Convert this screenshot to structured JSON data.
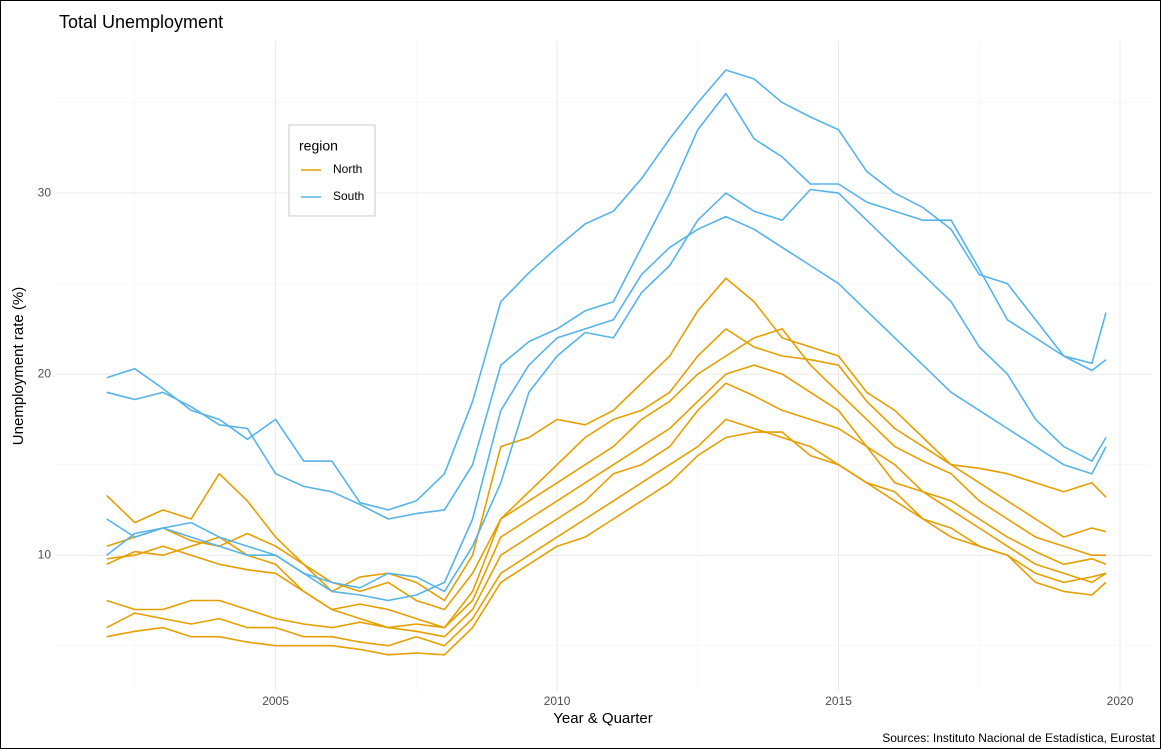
{
  "chart_data": {
    "type": "line",
    "title": "Total Unemployment",
    "x_label": "Year & Quarter",
    "y_label": "Unemployment rate (%)",
    "caption": "Sources: Instituto Nacional de Estadística, Eurostat",
    "legend_title": "region",
    "grid": true,
    "xlim": [
      2001.1,
      2020.55
    ],
    "ylim": [
      2.5,
      38.4
    ],
    "xticks": [
      2005,
      2010,
      2015,
      2020
    ],
    "yticks": [
      10,
      20,
      30
    ],
    "xminor": [
      2002.5,
      2007.5,
      2012.5,
      2017.5
    ],
    "yminor": [
      5,
      15,
      25,
      35
    ],
    "x": [
      2002,
      2002.5,
      2003,
      2003.5,
      2004,
      2004.5,
      2005,
      2005.5,
      2006,
      2006.5,
      2007,
      2007.5,
      2008,
      2008.5,
      2009,
      2009.5,
      2010,
      2010.5,
      2011,
      2011.5,
      2012,
      2012.5,
      2013,
      2013.5,
      2014,
      2014.5,
      2015,
      2015.5,
      2016,
      2016.5,
      2017,
      2017.5,
      2018,
      2018.5,
      2019,
      2019.5,
      2019.75
    ],
    "series": [
      {
        "name": "North",
        "color": "#E69F00",
        "lines": [
          [
            13.3,
            11.8,
            12.5,
            12.0,
            14.5,
            13.0,
            11.0,
            9.5,
            8.0,
            8.8,
            9.0,
            8.5,
            7.5,
            10.0,
            16.0,
            16.5,
            17.5,
            17.2,
            18.0,
            19.5,
            21.0,
            23.5,
            25.3,
            24.0,
            22.0,
            21.5,
            21.0,
            19.0,
            18.0,
            16.5,
            15.0,
            14.8,
            14.5,
            14.0,
            13.5,
            14.0,
            13.2
          ],
          [
            10.5,
            11.0,
            11.5,
            10.8,
            10.5,
            11.2,
            10.5,
            9.5,
            8.5,
            8.0,
            8.5,
            7.5,
            7.0,
            9.0,
            12.0,
            13.5,
            15.0,
            16.5,
            17.5,
            18.0,
            19.0,
            21.0,
            22.5,
            21.5,
            21.0,
            20.8,
            20.5,
            18.5,
            17.0,
            16.0,
            15.0,
            14.0,
            13.0,
            12.0,
            11.0,
            11.5,
            11.3
          ],
          [
            9.5,
            10.2,
            10.0,
            10.5,
            11.0,
            10.0,
            9.5,
            8.0,
            7.0,
            7.3,
            7.0,
            6.5,
            6.0,
            8.0,
            12.0,
            13.0,
            14.0,
            15.0,
            16.0,
            17.5,
            18.5,
            20.0,
            21.0,
            22.0,
            22.5,
            20.5,
            19.0,
            17.5,
            16.0,
            15.2,
            14.5,
            13.0,
            12.0,
            11.0,
            10.5,
            10.0,
            10.0
          ],
          [
            9.8,
            10.0,
            10.5,
            10.0,
            9.5,
            9.2,
            9.0,
            8.0,
            7.0,
            6.5,
            6.0,
            6.2,
            6.0,
            7.5,
            11.0,
            12.0,
            13.0,
            14.0,
            15.0,
            16.0,
            17.0,
            18.5,
            20.0,
            20.5,
            20.0,
            19.0,
            18.0,
            16.0,
            14.0,
            13.5,
            13.0,
            12.0,
            11.0,
            10.2,
            9.5,
            9.8,
            9.5
          ],
          [
            7.5,
            7.0,
            7.0,
            7.5,
            7.5,
            7.0,
            6.5,
            6.2,
            6.0,
            6.3,
            6.0,
            5.8,
            5.5,
            7.0,
            10.0,
            11.0,
            12.0,
            13.0,
            14.5,
            15.0,
            16.0,
            18.0,
            19.5,
            18.8,
            18.0,
            17.5,
            17.0,
            16.0,
            15.0,
            13.5,
            12.5,
            11.5,
            10.5,
            9.5,
            9.0,
            8.5,
            9.0
          ],
          [
            6.0,
            6.8,
            6.5,
            6.2,
            6.5,
            6.0,
            6.0,
            5.5,
            5.5,
            5.2,
            5.0,
            5.5,
            5.0,
            6.5,
            9.0,
            10.0,
            11.0,
            12.0,
            13.0,
            14.0,
            15.0,
            16.0,
            17.5,
            17.0,
            16.5,
            16.0,
            15.0,
            14.0,
            13.0,
            12.0,
            11.5,
            10.5,
            10.0,
            9.0,
            8.5,
            8.8,
            9.0
          ],
          [
            5.5,
            5.8,
            6.0,
            5.5,
            5.5,
            5.2,
            5.0,
            5.0,
            5.0,
            4.8,
            4.5,
            4.6,
            4.5,
            6.0,
            8.5,
            9.5,
            10.5,
            11.0,
            12.0,
            13.0,
            14.0,
            15.5,
            16.5,
            16.8,
            16.8,
            15.5,
            15.0,
            14.0,
            13.5,
            12.0,
            11.0,
            10.5,
            10.0,
            8.5,
            8.0,
            7.8,
            8.5
          ]
        ]
      },
      {
        "name": "South",
        "color": "#56B4E9",
        "lines": [
          [
            19.8,
            20.3,
            19.2,
            18.0,
            17.5,
            16.4,
            17.5,
            15.2,
            15.2,
            12.9,
            12.5,
            13.0,
            14.5,
            18.5,
            24,
            25.6,
            27,
            28.3,
            29,
            30.8,
            33,
            35.0,
            36.8,
            36.3,
            35,
            34.2,
            33.5,
            31.2,
            30,
            29.2,
            28,
            25.5,
            25,
            23.0,
            21,
            20.6,
            23.4
          ],
          [
            19.0,
            18.6,
            19.0,
            18.2,
            17.2,
            17.0,
            14.5,
            13.8,
            13.5,
            12.8,
            12.0,
            12.3,
            12.5,
            15.0,
            20.5,
            21.8,
            22.5,
            23.5,
            24.0,
            27.0,
            30.0,
            33.5,
            35.5,
            33.0,
            32.0,
            30.5,
            30.5,
            29.5,
            29.0,
            28.5,
            28.5,
            25.8,
            23.0,
            22.0,
            21.0,
            20.2,
            20.8
          ],
          [
            12.0,
            11.0,
            11.5,
            11.8,
            11.0,
            10.5,
            10.0,
            9.0,
            8.5,
            8.2,
            9.0,
            8.8,
            8.0,
            10.5,
            14.0,
            19.0,
            21.0,
            22.3,
            22.0,
            24.5,
            26.0,
            28.5,
            30.0,
            29.0,
            28.5,
            30.2,
            30.0,
            28.5,
            27.0,
            25.5,
            24.0,
            21.5,
            20.0,
            17.5,
            16.0,
            15.2,
            16.5
          ],
          [
            10.0,
            11.2,
            11.5,
            11.0,
            10.5,
            10.0,
            10.0,
            9.0,
            8.0,
            7.8,
            7.5,
            7.8,
            8.5,
            12.0,
            18.0,
            20.5,
            22.0,
            22.5,
            23.0,
            25.5,
            27.0,
            28.0,
            28.7,
            28.0,
            27.0,
            26.0,
            25.0,
            23.5,
            22.0,
            20.5,
            19.0,
            18.0,
            17.0,
            16.0,
            15.0,
            14.5,
            16.0
          ]
        ]
      }
    ]
  }
}
